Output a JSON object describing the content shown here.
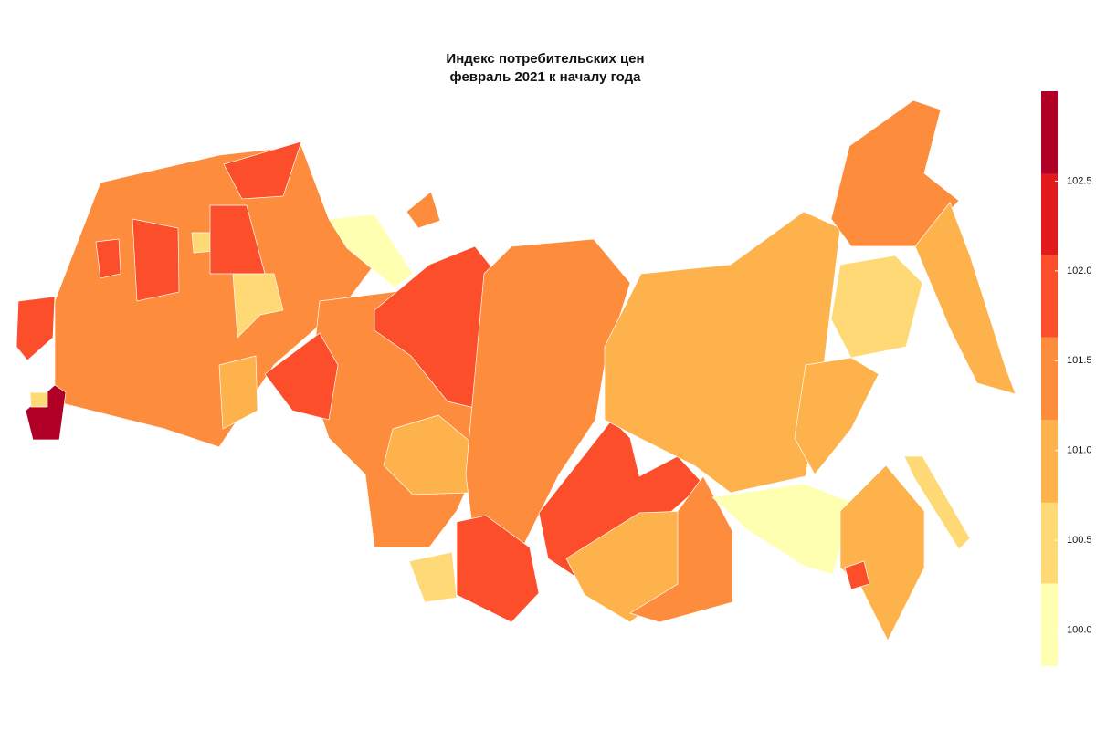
{
  "map": {
    "title": [
      "Индекс потребительских цен",
      "февраль 2021 к началу года"
    ],
    "colorbar": {
      "lim": [
        99.8,
        103.0
      ],
      "bins": [
        99.8,
        100.26,
        100.71,
        101.17,
        101.63,
        102.09,
        102.54,
        103.0
      ],
      "colors": [
        "#ffffb2",
        "#fed976",
        "#feb24c",
        "#fd8d3c",
        "#fc4e2a",
        "#e31a1c",
        "#b10026"
      ],
      "ticks": [
        {
          "value": 100.0,
          "label": "100.0"
        },
        {
          "value": 100.5,
          "label": "100.5"
        },
        {
          "value": 101.0,
          "label": "101.0"
        },
        {
          "value": 101.5,
          "label": "101.5"
        },
        {
          "value": 102.0,
          "label": "102.0"
        },
        {
          "value": 102.5,
          "label": "102.5"
        }
      ]
    },
    "region_values": [
      101.4,
      101.4,
      101.9,
      100.6,
      100.6,
      100.9,
      101.9,
      101.9,
      101.9,
      101.9,
      101.9,
      102.8,
      100.7,
      101.9,
      101.1,
      100.6,
      101.4,
      101.9,
      101.9,
      101.1,
      101.4,
      101.1,
      100.2,
      101.4,
      100.6,
      101.1,
      101.1,
      101.1,
      100.7,
      100.2,
      101.4,
      101.9
    ]
  }
}
